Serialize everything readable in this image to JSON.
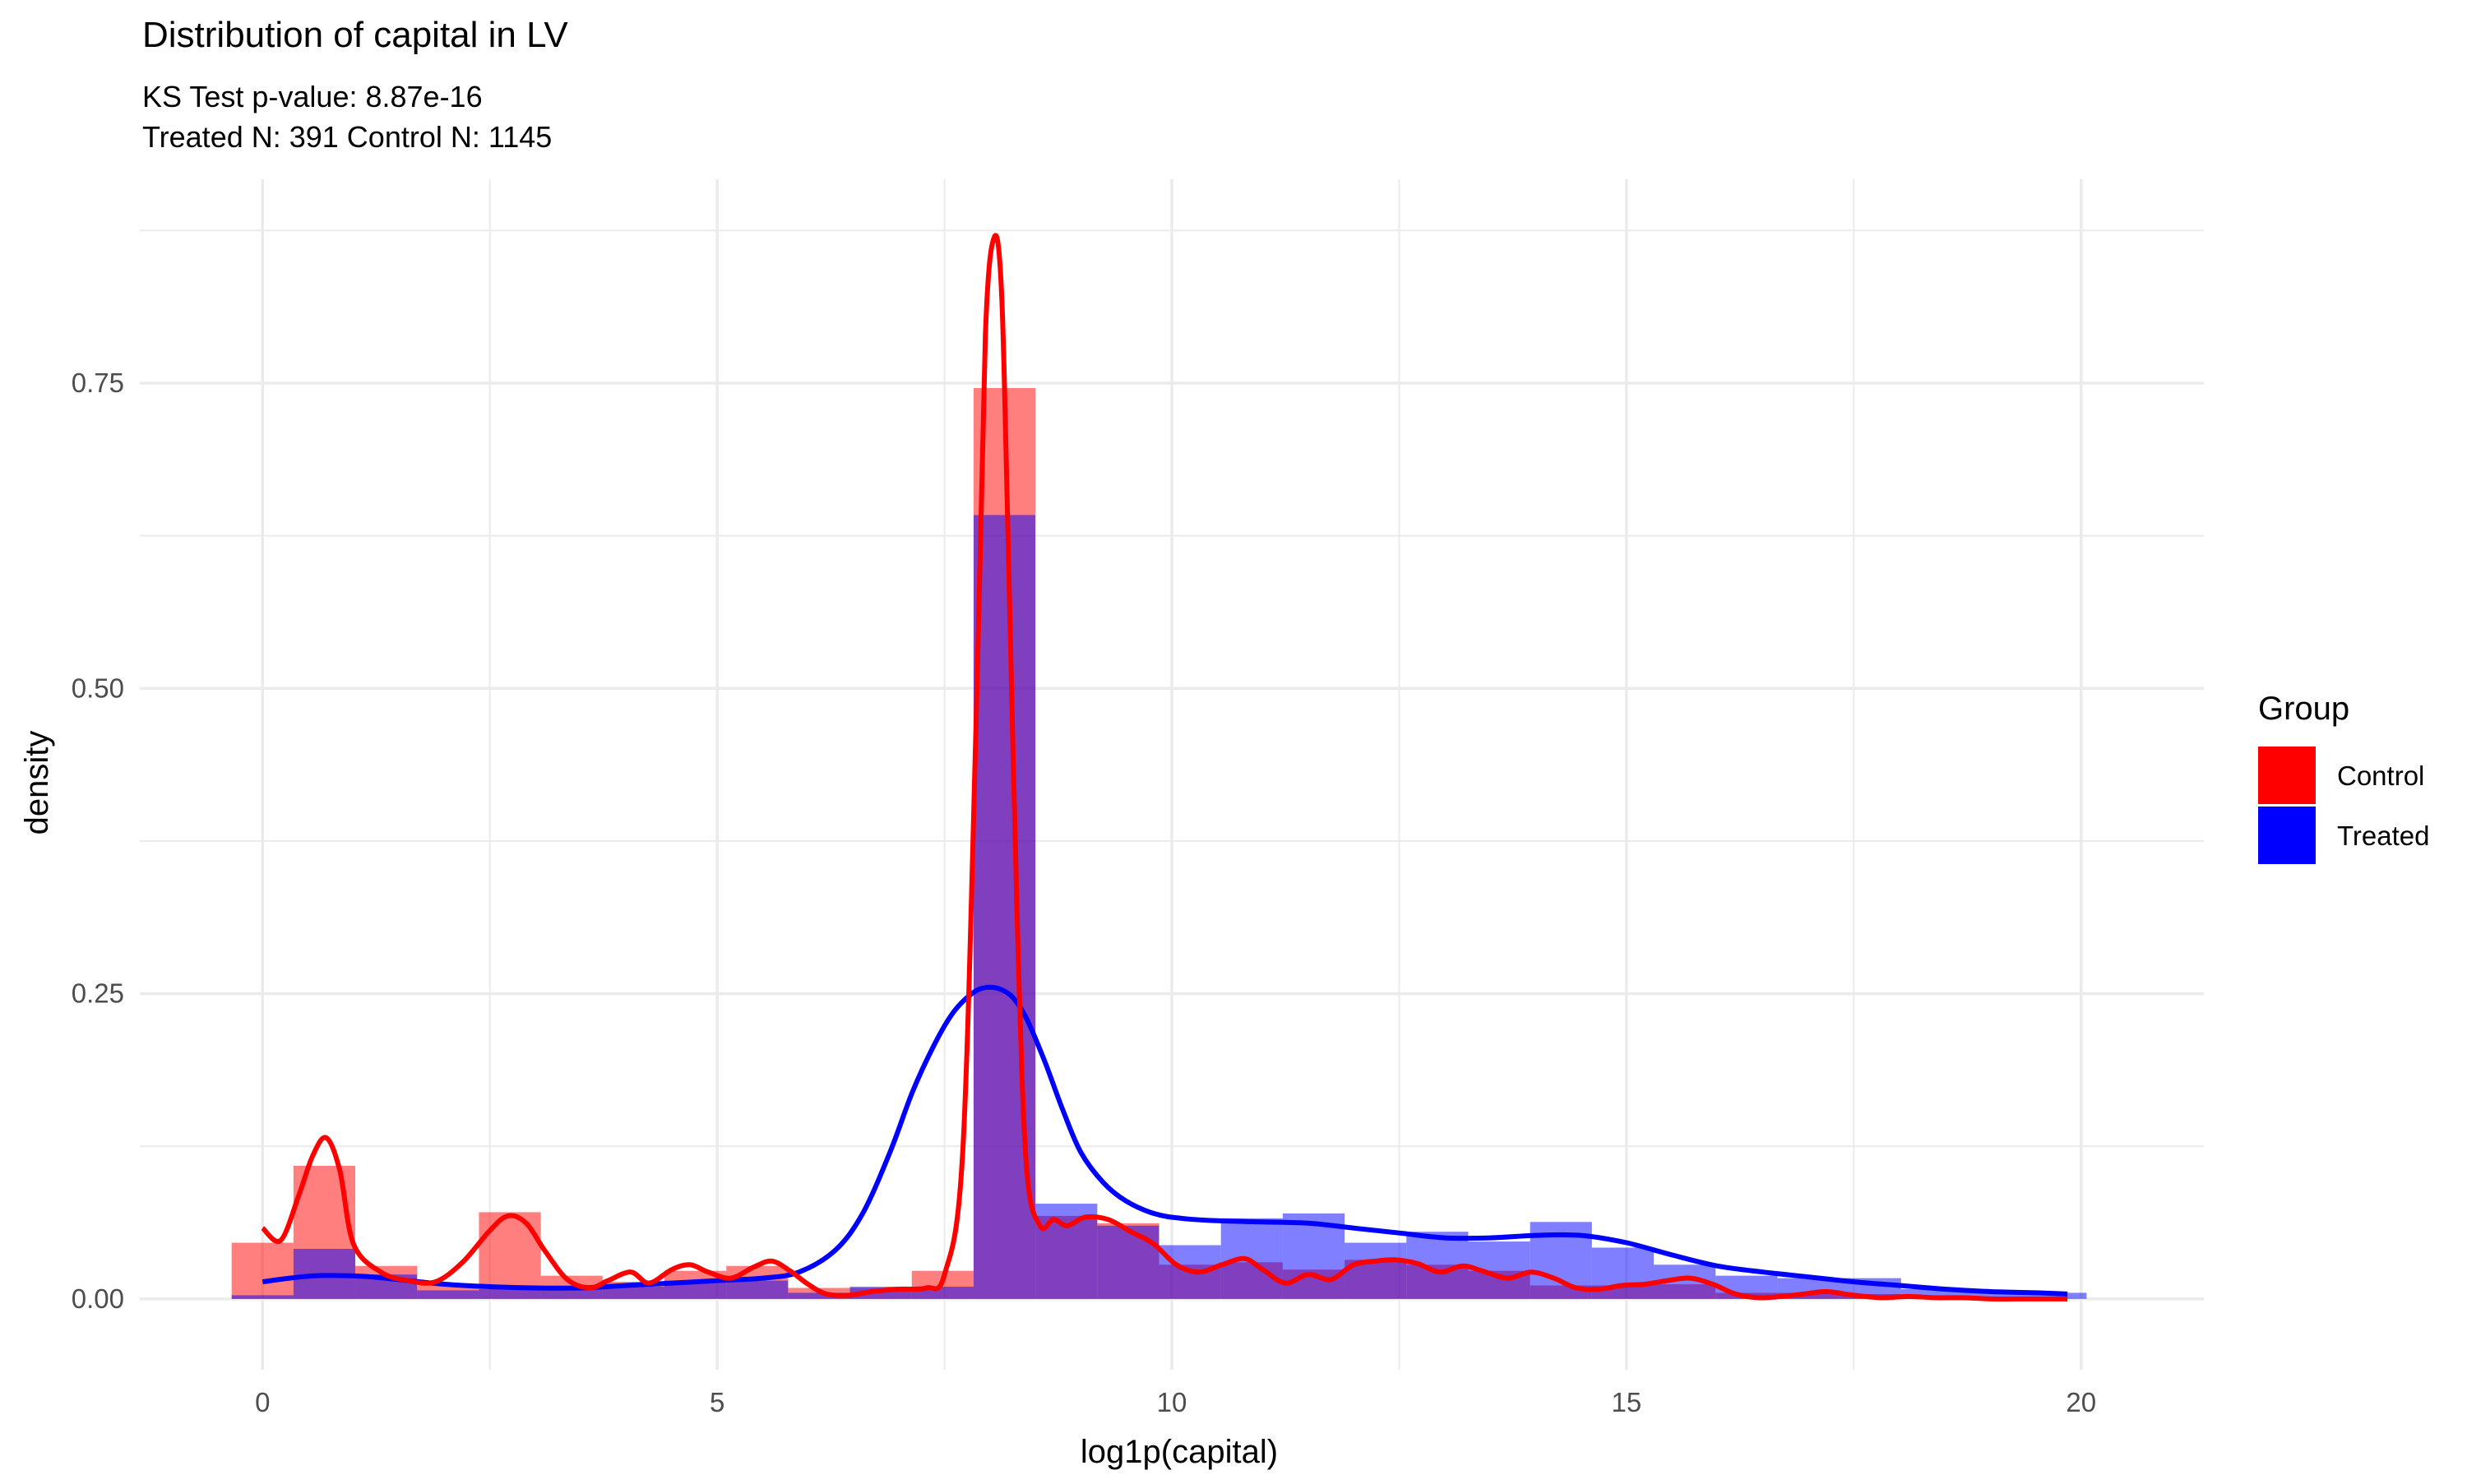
{
  "chart_data": {
    "type": "bar",
    "title": "Distribution of capital in LV",
    "subtitle_lines": [
      "KS Test p-value: 8.87e-16",
      "Treated N: 391 Control N: 1145"
    ],
    "xlabel": "log1p(capital)",
    "ylabel": "density",
    "xlim": [
      -1.35,
      21.35
    ],
    "ylim": [
      -0.058,
      0.917
    ],
    "x_ticks": [
      0,
      5,
      10,
      15,
      20
    ],
    "x_tick_labels": [
      "0",
      "5",
      "10",
      "15",
      "20"
    ],
    "y_ticks": [
      0,
      0.25,
      0.5,
      0.75
    ],
    "y_tick_labels": [
      "0.00",
      "0.25",
      "0.50",
      "0.75"
    ],
    "grid": true,
    "legend": {
      "title": "Group",
      "position": "right",
      "entries": [
        {
          "label": "Control",
          "color": "#ff0000"
        },
        {
          "label": "Treated",
          "color": "#0000ff"
        }
      ]
    },
    "colors": {
      "control": "#ff0000",
      "treated": "#0000ff",
      "grid": "#ebebeb",
      "text": "#000000",
      "tick_text": "#4d4d4d"
    },
    "bins": {
      "x_min": [
        -0.34,
        0.34,
        1.02,
        1.7,
        2.38,
        3.06,
        3.74,
        4.42,
        5.1,
        5.78,
        6.46,
        7.14,
        7.82,
        8.5,
        9.18,
        9.86,
        10.54,
        11.22,
        11.9,
        12.58,
        13.26,
        13.94,
        14.62,
        15.3,
        15.98,
        16.66,
        17.34,
        18.02,
        18.7,
        19.38
      ],
      "x_max": [
        0.34,
        1.02,
        1.7,
        2.38,
        3.06,
        3.74,
        4.42,
        5.1,
        5.78,
        6.46,
        7.14,
        7.82,
        8.5,
        9.18,
        9.86,
        10.54,
        11.22,
        11.9,
        12.58,
        13.26,
        13.94,
        14.62,
        15.3,
        15.98,
        16.66,
        17.34,
        18.02,
        18.7,
        19.38,
        20.06
      ]
    },
    "series": [
      {
        "name": "Control",
        "histogram": [
          0.046,
          0.109,
          0.027,
          0.011,
          0.071,
          0.019,
          0.014,
          0.023,
          0.027,
          0.009,
          0.009,
          0.023,
          0.746,
          0.068,
          0.062,
          0.028,
          0.03,
          0.024,
          0.032,
          0.028,
          0.023,
          0.011,
          0.011,
          0.012,
          0.005,
          0.005,
          0.004,
          0.001,
          0.001,
          0.0
        ],
        "density_x": [
          0.0,
          0.2,
          0.4,
          0.55,
          0.7,
          0.85,
          1.0,
          1.3,
          1.6,
          1.9,
          2.2,
          2.5,
          2.7,
          2.9,
          3.1,
          3.35,
          3.6,
          3.8,
          4.05,
          4.25,
          4.5,
          4.7,
          4.9,
          5.15,
          5.4,
          5.6,
          5.8,
          6.0,
          6.2,
          6.45,
          6.7,
          7.0,
          7.3,
          7.5,
          7.7,
          7.85,
          7.95,
          8.05,
          8.13,
          8.2,
          8.3,
          8.4,
          8.55,
          8.7,
          8.85,
          9.05,
          9.3,
          9.55,
          9.8,
          10.05,
          10.3,
          10.55,
          10.8,
          11.0,
          11.25,
          11.5,
          11.75,
          12.0,
          12.25,
          12.45,
          12.7,
          12.95,
          13.2,
          13.45,
          13.7,
          13.95,
          14.2,
          14.45,
          14.7,
          14.95,
          15.2,
          15.45,
          15.7,
          15.95,
          16.2,
          16.45,
          16.7,
          16.95,
          17.2,
          17.5,
          17.8,
          18.1,
          18.4,
          18.7,
          19.0,
          19.3,
          19.6,
          19.85
        ],
        "density": [
          0.058,
          0.048,
          0.085,
          0.117,
          0.132,
          0.105,
          0.045,
          0.022,
          0.015,
          0.014,
          0.03,
          0.056,
          0.068,
          0.062,
          0.04,
          0.016,
          0.009,
          0.015,
          0.022,
          0.013,
          0.024,
          0.028,
          0.022,
          0.017,
          0.026,
          0.031,
          0.023,
          0.012,
          0.004,
          0.003,
          0.006,
          0.008,
          0.009,
          0.02,
          0.12,
          0.48,
          0.79,
          0.87,
          0.82,
          0.62,
          0.31,
          0.11,
          0.06,
          0.065,
          0.06,
          0.067,
          0.065,
          0.055,
          0.045,
          0.028,
          0.022,
          0.028,
          0.033,
          0.024,
          0.013,
          0.02,
          0.016,
          0.028,
          0.031,
          0.032,
          0.029,
          0.022,
          0.027,
          0.022,
          0.017,
          0.022,
          0.017,
          0.009,
          0.008,
          0.011,
          0.012,
          0.015,
          0.017,
          0.012,
          0.004,
          0.001,
          0.002,
          0.004,
          0.006,
          0.003,
          0.001,
          0.002,
          0.001,
          0.001,
          0.0,
          0.0,
          0.0,
          0.0
        ]
      },
      {
        "name": "Treated",
        "histogram": [
          0.003,
          0.041,
          0.02,
          0.007,
          0.008,
          0.008,
          0.01,
          0.015,
          0.015,
          0.005,
          0.01,
          0.01,
          0.642,
          0.078,
          0.06,
          0.044,
          0.066,
          0.07,
          0.046,
          0.055,
          0.047,
          0.063,
          0.042,
          0.028,
          0.019,
          0.017,
          0.017,
          0.008,
          0.007,
          0.005
        ],
        "density_x": [
          0.0,
          0.3,
          0.6,
          0.9,
          1.2,
          1.6,
          2.0,
          2.5,
          3.0,
          3.5,
          4.0,
          4.5,
          5.0,
          5.5,
          5.9,
          6.3,
          6.6,
          6.9,
          7.15,
          7.4,
          7.6,
          7.8,
          7.95,
          8.1,
          8.25,
          8.4,
          8.6,
          8.8,
          9.0,
          9.25,
          9.5,
          9.8,
          10.1,
          10.5,
          11.0,
          11.5,
          12.0,
          12.5,
          13.0,
          13.5,
          14.0,
          14.5,
          15.0,
          15.5,
          16.0,
          16.5,
          17.0,
          17.5,
          18.0,
          18.5,
          19.0,
          19.5,
          19.85
        ],
        "density": [
          0.014,
          0.017,
          0.019,
          0.019,
          0.018,
          0.015,
          0.012,
          0.01,
          0.009,
          0.009,
          0.011,
          0.013,
          0.015,
          0.017,
          0.022,
          0.04,
          0.07,
          0.12,
          0.17,
          0.21,
          0.235,
          0.25,
          0.255,
          0.254,
          0.247,
          0.23,
          0.195,
          0.155,
          0.12,
          0.095,
          0.08,
          0.07,
          0.066,
          0.064,
          0.063,
          0.062,
          0.058,
          0.054,
          0.05,
          0.05,
          0.052,
          0.052,
          0.046,
          0.036,
          0.027,
          0.022,
          0.018,
          0.014,
          0.011,
          0.008,
          0.006,
          0.005,
          0.004
        ]
      }
    ]
  }
}
